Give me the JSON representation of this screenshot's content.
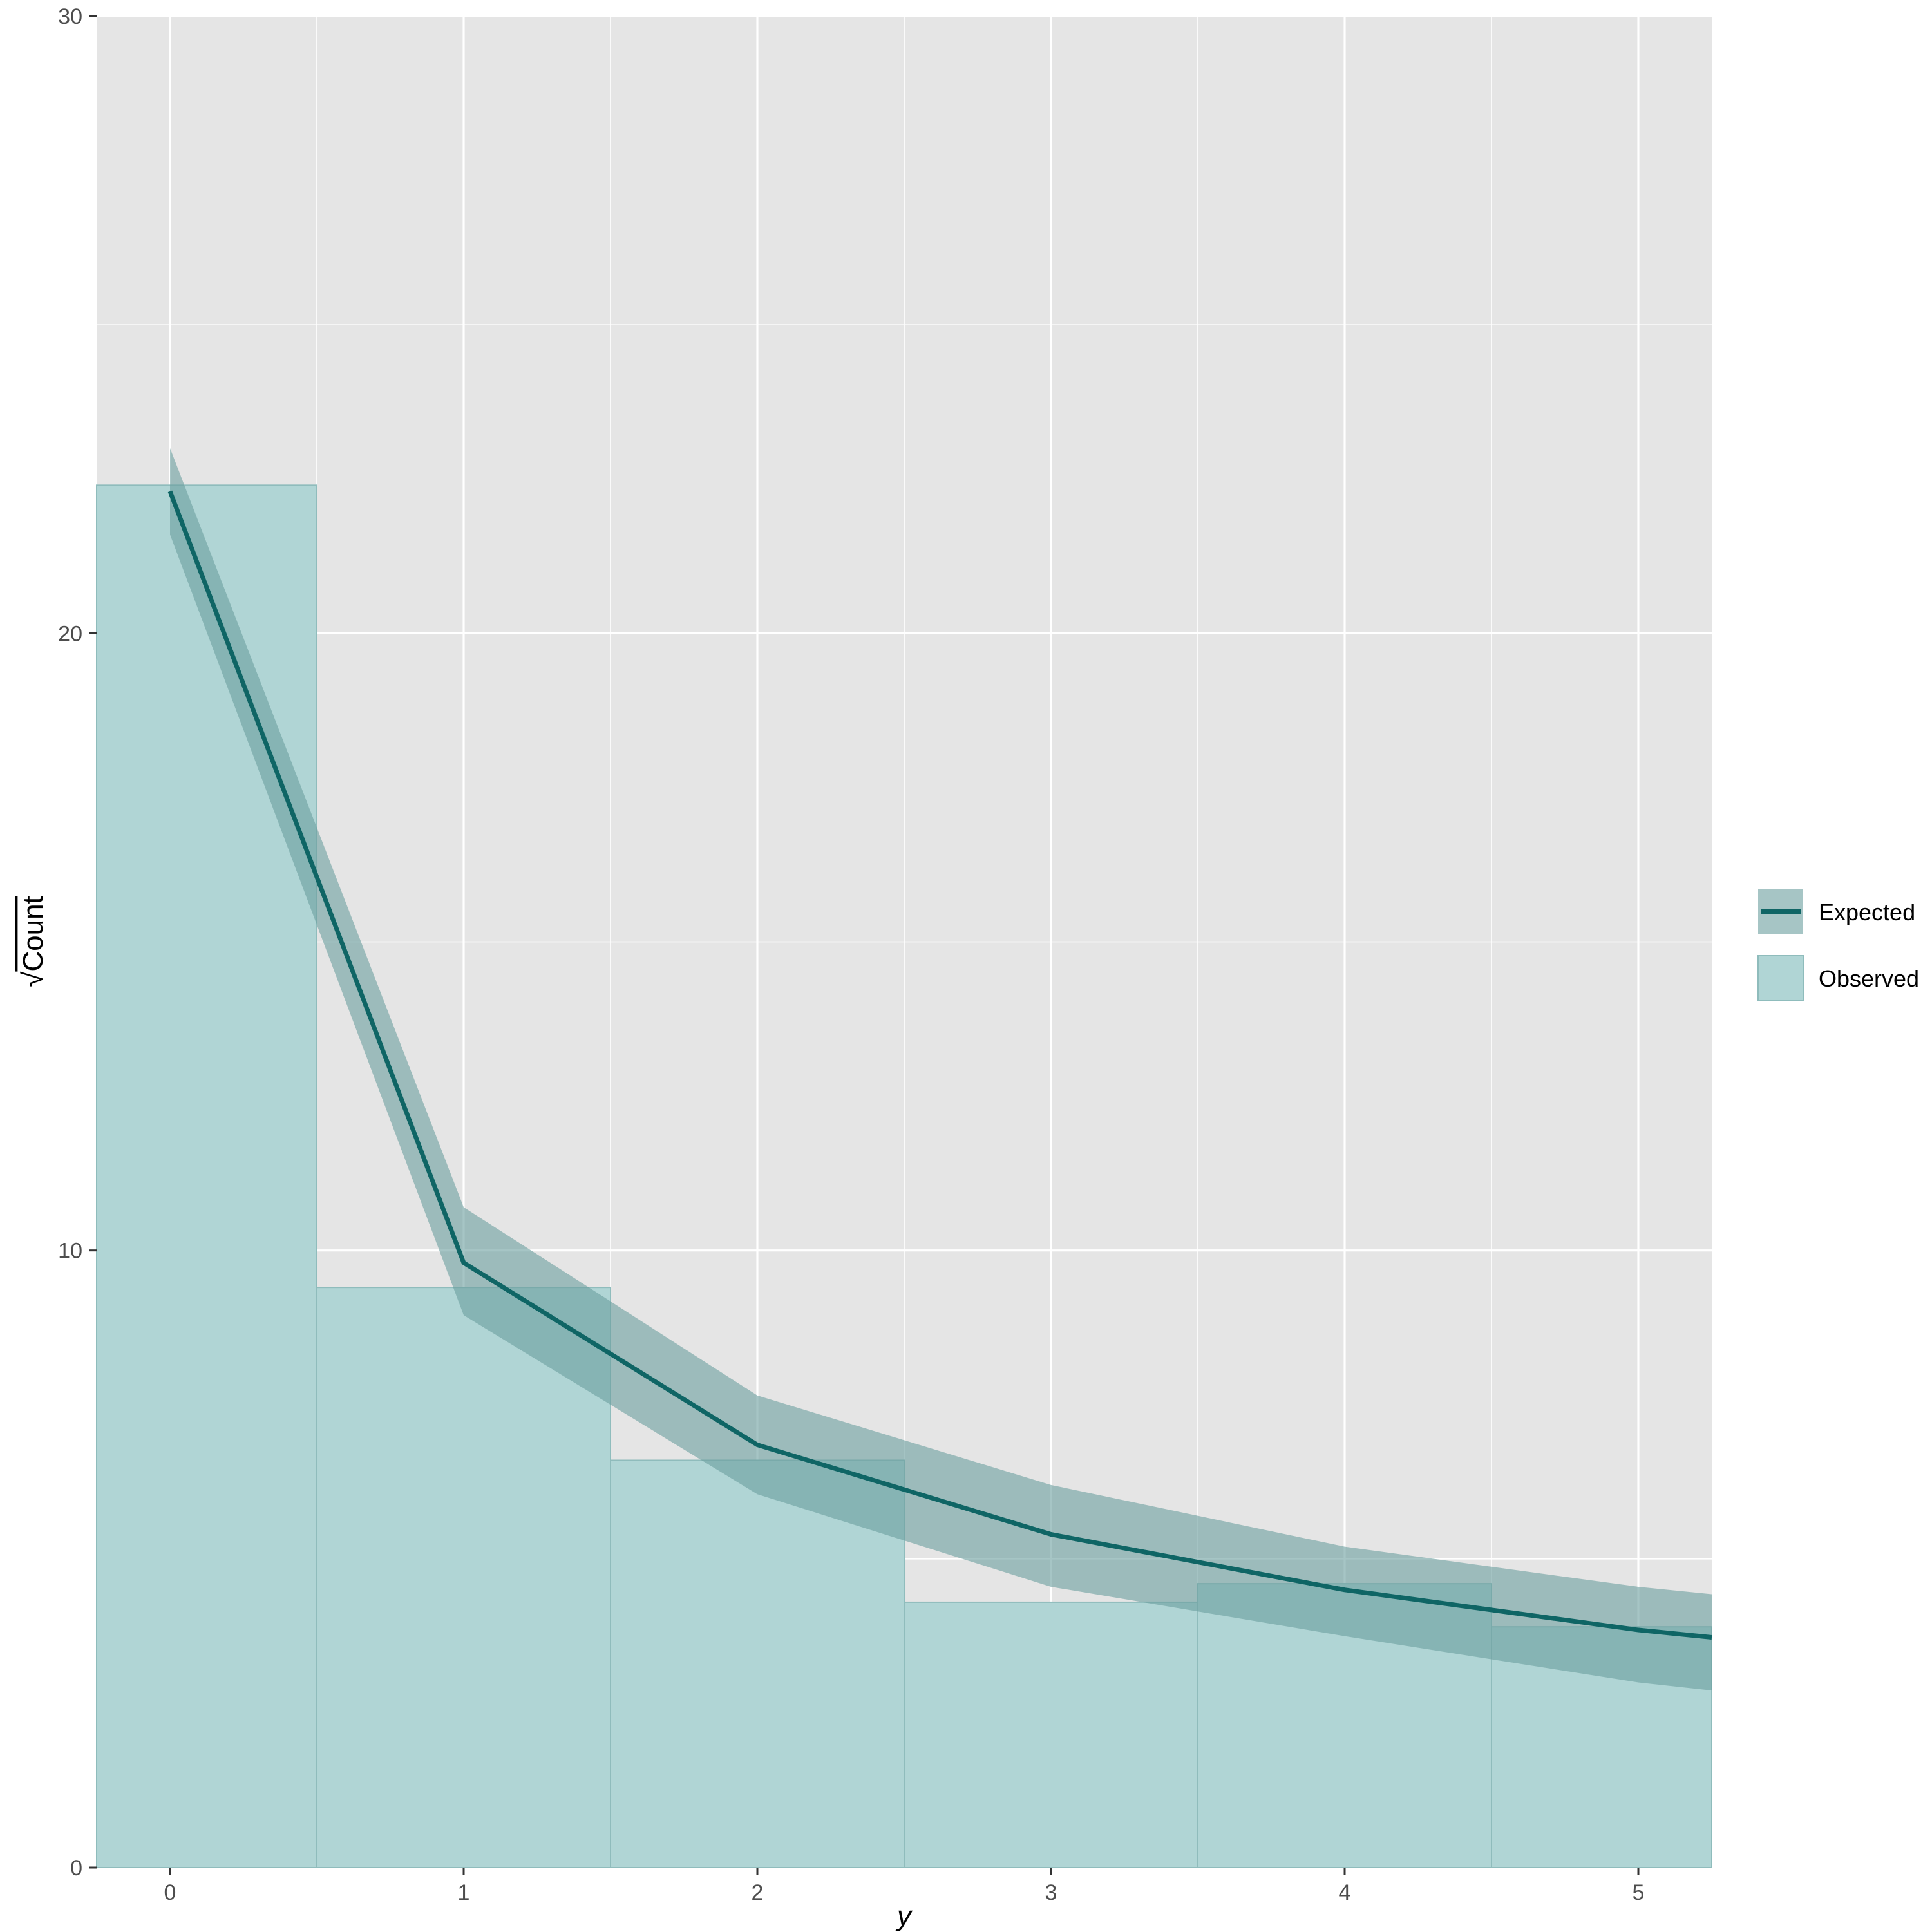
{
  "chart_data": {
    "type": "bar",
    "xlabel": "y",
    "ylabel": "Count",
    "ylabel_prefix": "√",
    "xlim": [
      -0.25,
      5.25
    ],
    "ylim": [
      0,
      30
    ],
    "x_ticks": [
      0,
      1,
      2,
      3,
      4,
      5
    ],
    "y_ticks": [
      0,
      10,
      20,
      30
    ],
    "grid": true,
    "legend_position": "right",
    "colors": {
      "panel": "#e5e5e5",
      "grid": "#ffffff",
      "observed_fill": "#b0d5d5",
      "observed_edge": "#8fbcbc",
      "expected_band": "#6a9e9e",
      "expected_line": "#0f6565"
    },
    "series": [
      {
        "name": "Observed",
        "kind": "bar",
        "x": [
          0,
          1,
          2,
          3,
          4,
          5
        ],
        "values": [
          22.4,
          9.4,
          6.6,
          4.3,
          4.6,
          3.9
        ]
      },
      {
        "name": "Expected",
        "kind": "line",
        "x": [
          0,
          1,
          2,
          3,
          4,
          5,
          5.25
        ],
        "values": [
          22.3,
          9.8,
          6.85,
          5.4,
          4.5,
          3.85,
          3.73
        ],
        "lower": [
          21.6,
          8.95,
          6.05,
          4.55,
          3.75,
          3.0,
          2.87
        ],
        "upper": [
          23.0,
          10.7,
          7.65,
          6.2,
          5.2,
          4.55,
          4.43
        ]
      }
    ]
  }
}
